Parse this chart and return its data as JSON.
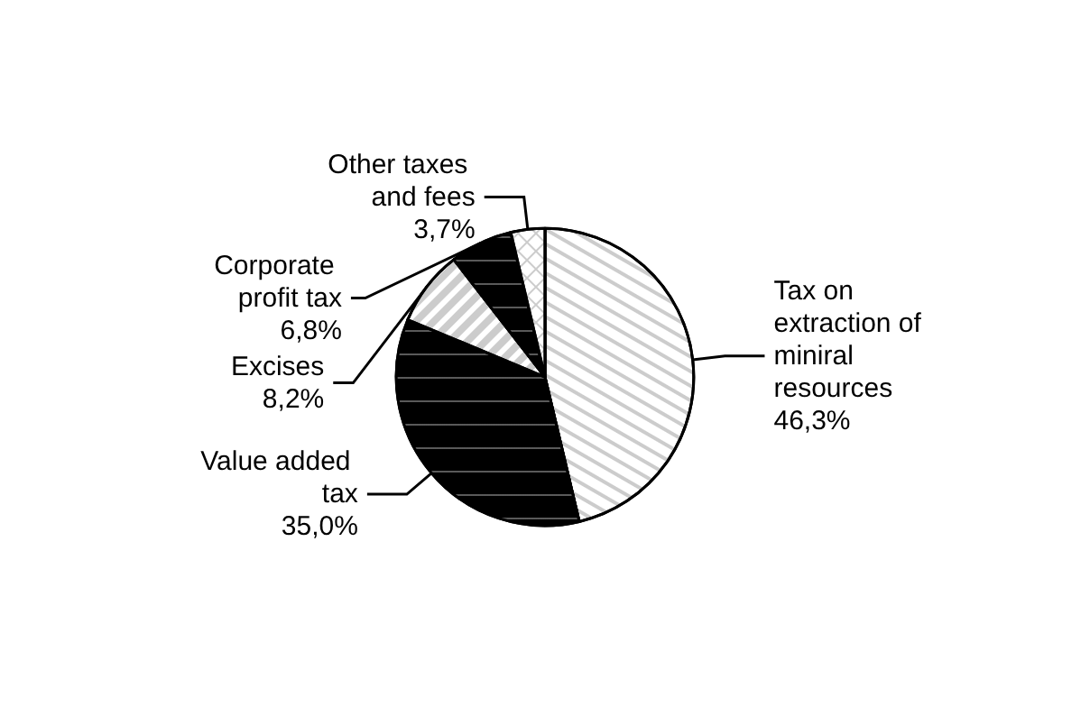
{
  "chart_data": {
    "type": "pie",
    "categories": [
      "Tax on extraction of miniral resources",
      "Value added tax",
      "Excises",
      "Corporate profit tax",
      "Other taxes and fees"
    ],
    "values": [
      46.3,
      35.0,
      8.2,
      6.8,
      3.7
    ],
    "colors": [
      "#ffffff",
      "#000000",
      "#ffffff",
      "#000000",
      "#ffffff"
    ],
    "value_labels": [
      "46,3%",
      "35,0%",
      "8,2%",
      "6,8%",
      "3,7%"
    ],
    "legend": false
  }
}
